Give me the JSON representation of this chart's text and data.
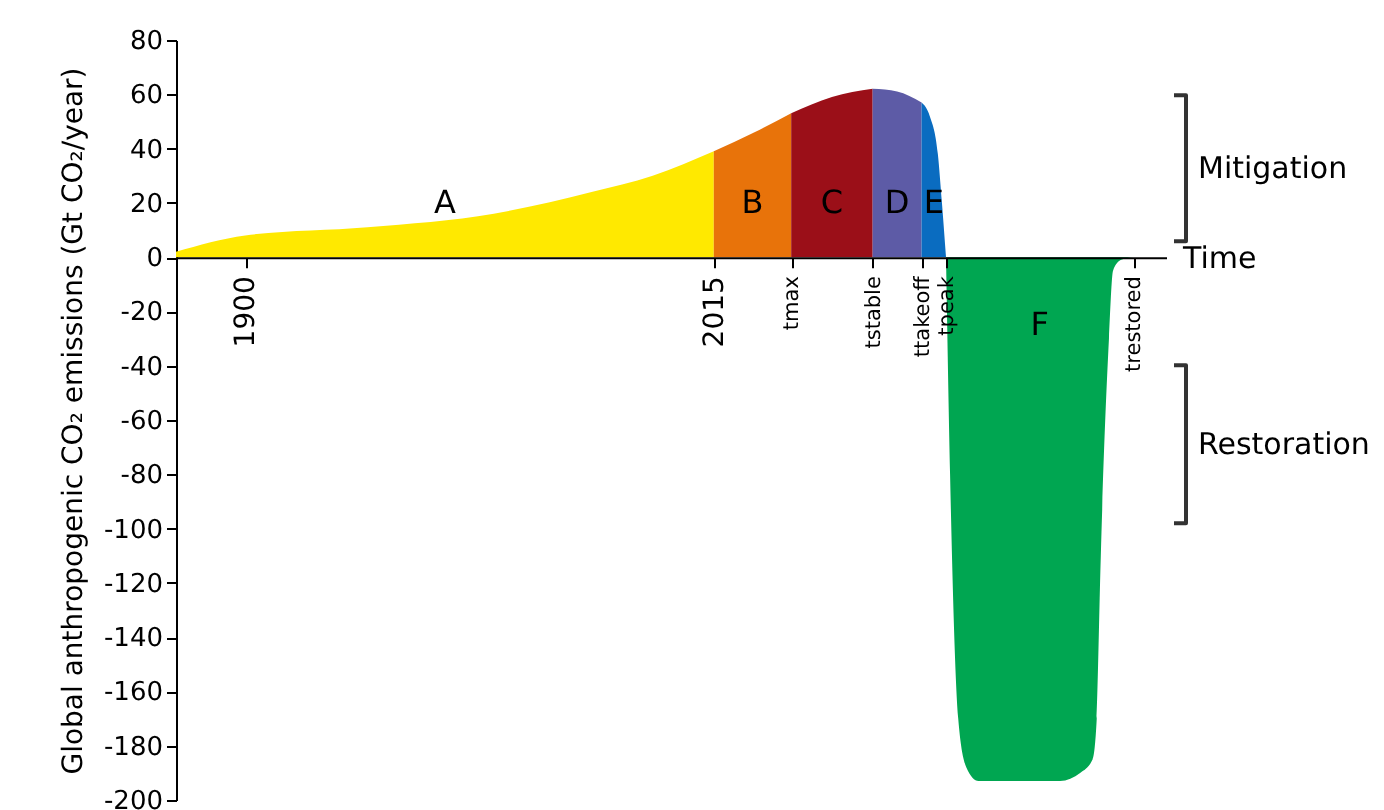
{
  "chart_data": {
    "type": "area",
    "ylabel": "Global anthropogenic CO₂ emissions (Gt CO₂/year)",
    "xlabel": "Time",
    "xlim": [
      1883,
      2126
    ],
    "ylim": [
      -200,
      80
    ],
    "xticks": [
      1900,
      2015,
      {
        "value": 2034,
        "label": "tmax"
      },
      {
        "value": 2054,
        "label": "tstable"
      },
      {
        "value": 2066,
        "label": "ttakeoff"
      },
      {
        "value": 2072,
        "label": "tpeak"
      },
      {
        "value": 2118,
        "label": "trestored"
      }
    ],
    "yticks": [
      -200,
      -180,
      -160,
      -140,
      -120,
      -100,
      -80,
      -60,
      -40,
      -20,
      0,
      20,
      40,
      60,
      80
    ],
    "grid": false,
    "series": [
      {
        "color": "#ffe900",
        "x": [
          1883,
          1900,
          1930,
          1961,
          1985,
          2000,
          2015
        ],
        "values": [
          2,
          8,
          11,
          16,
          24,
          30,
          39
        ]
      },
      {
        "color": "#e8730a",
        "x": [
          2015,
          2025,
          2034
        ],
        "values": [
          39,
          46,
          53
        ]
      },
      {
        "color": "#9b0f18",
        "x": [
          2034,
          2044,
          2054
        ],
        "values": [
          53,
          59,
          62
        ]
      },
      {
        "color": "#5d5ba6",
        "x": [
          2054,
          2060,
          2066
        ],
        "values": [
          62,
          61,
          57
        ]
      },
      {
        "color": "#0a6cc0",
        "x": [
          2066,
          2068,
          2070,
          2071,
          2072
        ],
        "values": [
          57,
          52,
          38,
          20,
          0
        ]
      },
      {
        "color": "#00a651",
        "x": [
          2072,
          2073,
          2075,
          2077,
          2080,
          2100,
          2105,
          2108,
          2109,
          2110,
          2112,
          2113,
          2115,
          2118
        ],
        "values": [
          0,
          -80,
          -170,
          -188,
          -193,
          -193,
          -190,
          -185,
          -170,
          -110,
          -30,
          -5,
          -1,
          0
        ]
      }
    ],
    "annotations": [
      "A",
      "B",
      "C",
      "D",
      "E",
      "F",
      "Mitigation",
      "Restoration"
    ]
  }
}
